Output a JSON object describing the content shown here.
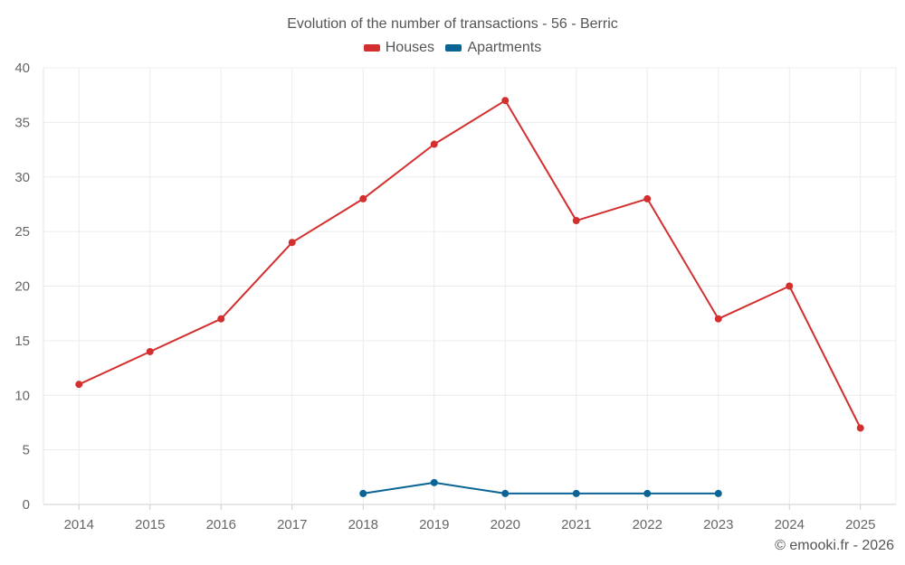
{
  "chart_data": {
    "type": "line",
    "title": "Evolution of the number of transactions - 56 - Berric",
    "categories": [
      "2014",
      "2015",
      "2016",
      "2017",
      "2018",
      "2019",
      "2020",
      "2021",
      "2022",
      "2023",
      "2024",
      "2025"
    ],
    "series": [
      {
        "name": "Houses",
        "color": "#d32f2f",
        "values": [
          11,
          14,
          17,
          24,
          28,
          33,
          37,
          26,
          28,
          17,
          20,
          7
        ]
      },
      {
        "name": "Apartments",
        "color": "#0a6496",
        "values": [
          null,
          null,
          null,
          null,
          1,
          2,
          1,
          1,
          1,
          1,
          null,
          null
        ]
      }
    ],
    "ylim": [
      0,
      40
    ],
    "yticks": [
      0,
      5,
      10,
      15,
      20,
      25,
      30,
      35,
      40
    ],
    "legend_position": "top-center",
    "grid": true
  },
  "credit": "© emooki.fr - 2026"
}
